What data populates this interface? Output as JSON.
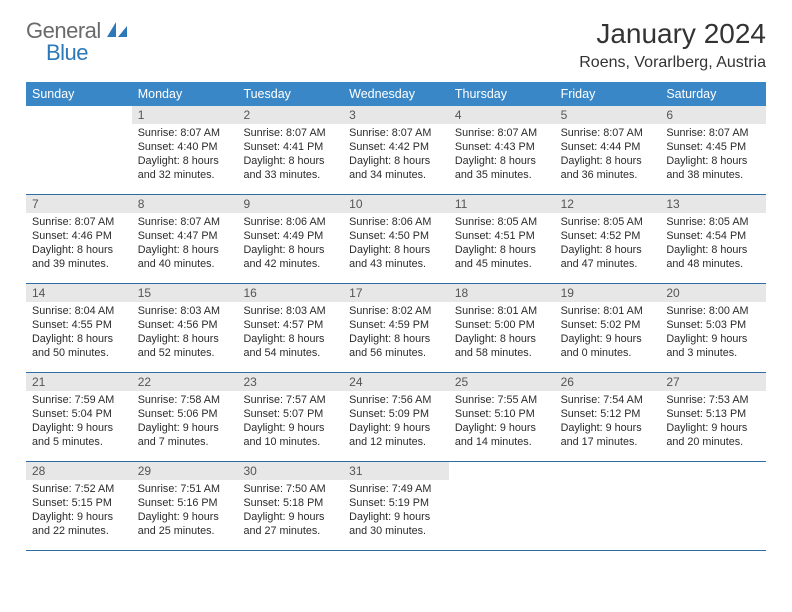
{
  "logo": {
    "general": "General",
    "blue": "Blue"
  },
  "header": {
    "title": "January 2024",
    "location": "Roens, Vorarlberg, Austria"
  },
  "colors": {
    "header_bg": "#3a87c7",
    "row_border": "#2d6da3",
    "daynum_bg": "#e7e7e7",
    "accent": "#2d78b8"
  },
  "weekdays": [
    "Sunday",
    "Monday",
    "Tuesday",
    "Wednesday",
    "Thursday",
    "Friday",
    "Saturday"
  ],
  "weeks": [
    [
      {
        "empty": true
      },
      {
        "num": "1",
        "sunrise": "Sunrise: 8:07 AM",
        "sunset": "Sunset: 4:40 PM",
        "day1": "Daylight: 8 hours",
        "day2": "and 32 minutes."
      },
      {
        "num": "2",
        "sunrise": "Sunrise: 8:07 AM",
        "sunset": "Sunset: 4:41 PM",
        "day1": "Daylight: 8 hours",
        "day2": "and 33 minutes."
      },
      {
        "num": "3",
        "sunrise": "Sunrise: 8:07 AM",
        "sunset": "Sunset: 4:42 PM",
        "day1": "Daylight: 8 hours",
        "day2": "and 34 minutes."
      },
      {
        "num": "4",
        "sunrise": "Sunrise: 8:07 AM",
        "sunset": "Sunset: 4:43 PM",
        "day1": "Daylight: 8 hours",
        "day2": "and 35 minutes."
      },
      {
        "num": "5",
        "sunrise": "Sunrise: 8:07 AM",
        "sunset": "Sunset: 4:44 PM",
        "day1": "Daylight: 8 hours",
        "day2": "and 36 minutes."
      },
      {
        "num": "6",
        "sunrise": "Sunrise: 8:07 AM",
        "sunset": "Sunset: 4:45 PM",
        "day1": "Daylight: 8 hours",
        "day2": "and 38 minutes."
      }
    ],
    [
      {
        "num": "7",
        "sunrise": "Sunrise: 8:07 AM",
        "sunset": "Sunset: 4:46 PM",
        "day1": "Daylight: 8 hours",
        "day2": "and 39 minutes."
      },
      {
        "num": "8",
        "sunrise": "Sunrise: 8:07 AM",
        "sunset": "Sunset: 4:47 PM",
        "day1": "Daylight: 8 hours",
        "day2": "and 40 minutes."
      },
      {
        "num": "9",
        "sunrise": "Sunrise: 8:06 AM",
        "sunset": "Sunset: 4:49 PM",
        "day1": "Daylight: 8 hours",
        "day2": "and 42 minutes."
      },
      {
        "num": "10",
        "sunrise": "Sunrise: 8:06 AM",
        "sunset": "Sunset: 4:50 PM",
        "day1": "Daylight: 8 hours",
        "day2": "and 43 minutes."
      },
      {
        "num": "11",
        "sunrise": "Sunrise: 8:05 AM",
        "sunset": "Sunset: 4:51 PM",
        "day1": "Daylight: 8 hours",
        "day2": "and 45 minutes."
      },
      {
        "num": "12",
        "sunrise": "Sunrise: 8:05 AM",
        "sunset": "Sunset: 4:52 PM",
        "day1": "Daylight: 8 hours",
        "day2": "and 47 minutes."
      },
      {
        "num": "13",
        "sunrise": "Sunrise: 8:05 AM",
        "sunset": "Sunset: 4:54 PM",
        "day1": "Daylight: 8 hours",
        "day2": "and 48 minutes."
      }
    ],
    [
      {
        "num": "14",
        "sunrise": "Sunrise: 8:04 AM",
        "sunset": "Sunset: 4:55 PM",
        "day1": "Daylight: 8 hours",
        "day2": "and 50 minutes."
      },
      {
        "num": "15",
        "sunrise": "Sunrise: 8:03 AM",
        "sunset": "Sunset: 4:56 PM",
        "day1": "Daylight: 8 hours",
        "day2": "and 52 minutes."
      },
      {
        "num": "16",
        "sunrise": "Sunrise: 8:03 AM",
        "sunset": "Sunset: 4:57 PM",
        "day1": "Daylight: 8 hours",
        "day2": "and 54 minutes."
      },
      {
        "num": "17",
        "sunrise": "Sunrise: 8:02 AM",
        "sunset": "Sunset: 4:59 PM",
        "day1": "Daylight: 8 hours",
        "day2": "and 56 minutes."
      },
      {
        "num": "18",
        "sunrise": "Sunrise: 8:01 AM",
        "sunset": "Sunset: 5:00 PM",
        "day1": "Daylight: 8 hours",
        "day2": "and 58 minutes."
      },
      {
        "num": "19",
        "sunrise": "Sunrise: 8:01 AM",
        "sunset": "Sunset: 5:02 PM",
        "day1": "Daylight: 9 hours",
        "day2": "and 0 minutes."
      },
      {
        "num": "20",
        "sunrise": "Sunrise: 8:00 AM",
        "sunset": "Sunset: 5:03 PM",
        "day1": "Daylight: 9 hours",
        "day2": "and 3 minutes."
      }
    ],
    [
      {
        "num": "21",
        "sunrise": "Sunrise: 7:59 AM",
        "sunset": "Sunset: 5:04 PM",
        "day1": "Daylight: 9 hours",
        "day2": "and 5 minutes."
      },
      {
        "num": "22",
        "sunrise": "Sunrise: 7:58 AM",
        "sunset": "Sunset: 5:06 PM",
        "day1": "Daylight: 9 hours",
        "day2": "and 7 minutes."
      },
      {
        "num": "23",
        "sunrise": "Sunrise: 7:57 AM",
        "sunset": "Sunset: 5:07 PM",
        "day1": "Daylight: 9 hours",
        "day2": "and 10 minutes."
      },
      {
        "num": "24",
        "sunrise": "Sunrise: 7:56 AM",
        "sunset": "Sunset: 5:09 PM",
        "day1": "Daylight: 9 hours",
        "day2": "and 12 minutes."
      },
      {
        "num": "25",
        "sunrise": "Sunrise: 7:55 AM",
        "sunset": "Sunset: 5:10 PM",
        "day1": "Daylight: 9 hours",
        "day2": "and 14 minutes."
      },
      {
        "num": "26",
        "sunrise": "Sunrise: 7:54 AM",
        "sunset": "Sunset: 5:12 PM",
        "day1": "Daylight: 9 hours",
        "day2": "and 17 minutes."
      },
      {
        "num": "27",
        "sunrise": "Sunrise: 7:53 AM",
        "sunset": "Sunset: 5:13 PM",
        "day1": "Daylight: 9 hours",
        "day2": "and 20 minutes."
      }
    ],
    [
      {
        "num": "28",
        "sunrise": "Sunrise: 7:52 AM",
        "sunset": "Sunset: 5:15 PM",
        "day1": "Daylight: 9 hours",
        "day2": "and 22 minutes."
      },
      {
        "num": "29",
        "sunrise": "Sunrise: 7:51 AM",
        "sunset": "Sunset: 5:16 PM",
        "day1": "Daylight: 9 hours",
        "day2": "and 25 minutes."
      },
      {
        "num": "30",
        "sunrise": "Sunrise: 7:50 AM",
        "sunset": "Sunset: 5:18 PM",
        "day1": "Daylight: 9 hours",
        "day2": "and 27 minutes."
      },
      {
        "num": "31",
        "sunrise": "Sunrise: 7:49 AM",
        "sunset": "Sunset: 5:19 PM",
        "day1": "Daylight: 9 hours",
        "day2": "and 30 minutes."
      },
      {
        "empty": true
      },
      {
        "empty": true
      },
      {
        "empty": true
      }
    ]
  ]
}
